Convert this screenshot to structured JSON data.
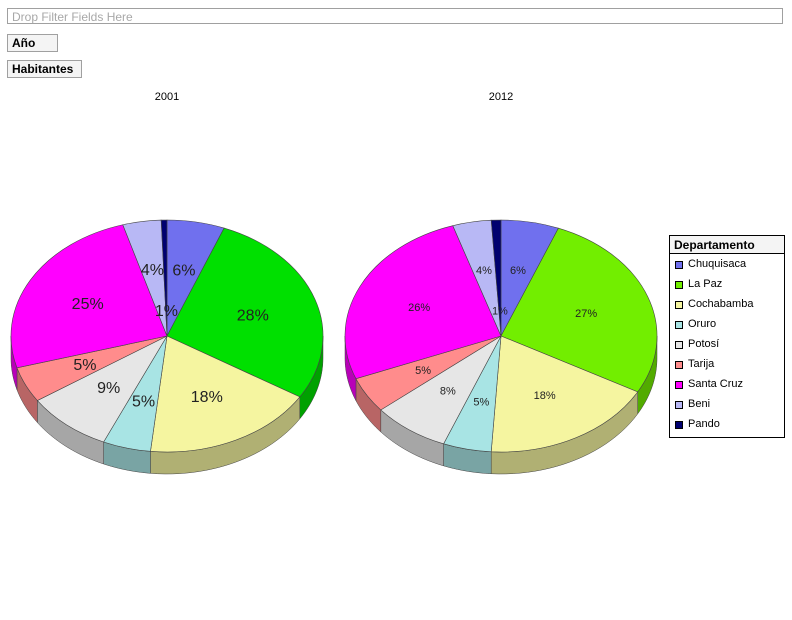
{
  "filter_area": {
    "placeholder": "Drop Filter Fields Here"
  },
  "fields": {
    "row_field": "Año",
    "data_field": "Habitantes"
  },
  "legend": {
    "title": "Departamento"
  },
  "chart_data": {
    "type": "pie",
    "categories": [
      "Chuquisaca",
      "La Paz",
      "Cochabamba",
      "Oruro",
      "Potosí",
      "Tarija",
      "Santa Cruz",
      "Beni",
      "Pando"
    ],
    "colors": {
      "2001": [
        "#7070ee",
        "#00e000",
        "#f5f5a0",
        "#a8e4e4",
        "#e6e6e6",
        "#ff8c8c",
        "#ff00ff",
        "#b8b8f5",
        "#000070"
      ],
      "2012": [
        "#7070ee",
        "#72ee00",
        "#f5f5a0",
        "#a8e4e4",
        "#e6e6e6",
        "#ff8c8c",
        "#ff00ff",
        "#b8b8f5",
        "#000070"
      ]
    },
    "series": [
      {
        "name": "2001",
        "values": [
          6,
          28,
          18,
          5,
          9,
          5,
          25,
          4,
          0.6
        ],
        "labels": [
          "6%",
          "28%",
          "18%",
          "5%",
          "9%",
          "5%",
          "25%",
          "4%",
          "1%"
        ]
      },
      {
        "name": "2012",
        "values": [
          6,
          27,
          18,
          5,
          8,
          5,
          26,
          4,
          1
        ],
        "labels": [
          "6%",
          "27%",
          "18%",
          "5%",
          "8%",
          "5%",
          "26%",
          "4%",
          "1%"
        ]
      }
    ]
  }
}
